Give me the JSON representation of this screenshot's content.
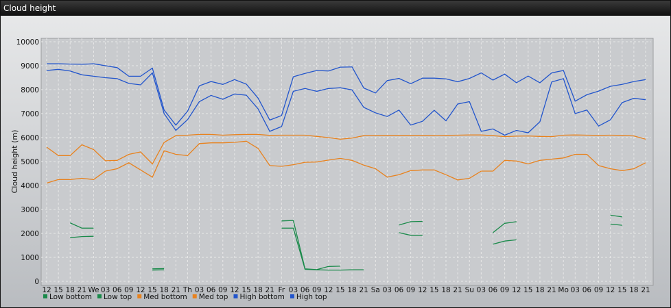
{
  "window": {
    "title": "Cloud height"
  },
  "chart_data": {
    "type": "line",
    "title": "",
    "xlabel": "",
    "ylabel": "Cloud height (m)",
    "ylim": [
      0,
      10000
    ],
    "yticks": [
      0,
      1000,
      2000,
      3000,
      4000,
      5000,
      6000,
      7000,
      8000,
      9000,
      10000
    ],
    "x_tick_labels": [
      "12",
      "15",
      "18",
      "21",
      "We",
      "03",
      "06",
      "09",
      "12",
      "15",
      "18",
      "21",
      "Th",
      "03",
      "06",
      "09",
      "12",
      "15",
      "18",
      "21",
      "Fr",
      "03",
      "06",
      "09",
      "12",
      "15",
      "18",
      "21",
      "Sa",
      "03",
      "06",
      "09",
      "12",
      "15",
      "18",
      "21",
      "Su",
      "03",
      "06",
      "09",
      "12",
      "15",
      "18",
      "21",
      "Mo",
      "03",
      "06",
      "09",
      "12",
      "15",
      "18",
      "21"
    ],
    "grid": true,
    "legend_position": "bottom-left",
    "series": [
      {
        "name": "Low bottom",
        "color": "#1a8a4a",
        "values": [
          null,
          null,
          1800,
          1870,
          1880,
          null,
          null,
          null,
          null,
          null,
          null,
          null,
          null,
          null,
          null,
          null,
          null,
          null,
          null,
          null,
          null,
          null,
          null,
          null,
          null,
          null,
          null,
          null,
          null,
          null,
          null,
          null,
          null,
          null,
          null,
          null,
          null,
          null,
          null,
          null,
          null,
          null,
          null,
          null,
          null,
          null,
          null,
          null,
          null,
          null,
          null,
          null,
          null,
          null,
          null,
          null,
          null,
          null,
          null,
          null,
          null,
          null,
          null,
          null,
          null,
          null,
          null,
          null,
          null,
          null,
          null,
          null,
          null,
          null,
          null,
          null,
          null,
          null,
          null,
          null,
          null,
          null,
          null,
          null,
          null,
          null,
          null,
          null,
          null,
          null,
          null,
          null,
          null,
          null,
          null
        ]
      },
      {
        "name": "Low top",
        "color": "#1a8a4a",
        "values": []
      },
      {
        "name": "Med bottom",
        "color": "#e8821e",
        "values": []
      },
      {
        "name": "Med top",
        "color": "#e8821e",
        "values": []
      },
      {
        "name": "High bottom",
        "color": "#2255cc",
        "values": []
      },
      {
        "name": "High top",
        "color": "#2255cc",
        "values": []
      }
    ]
  }
}
